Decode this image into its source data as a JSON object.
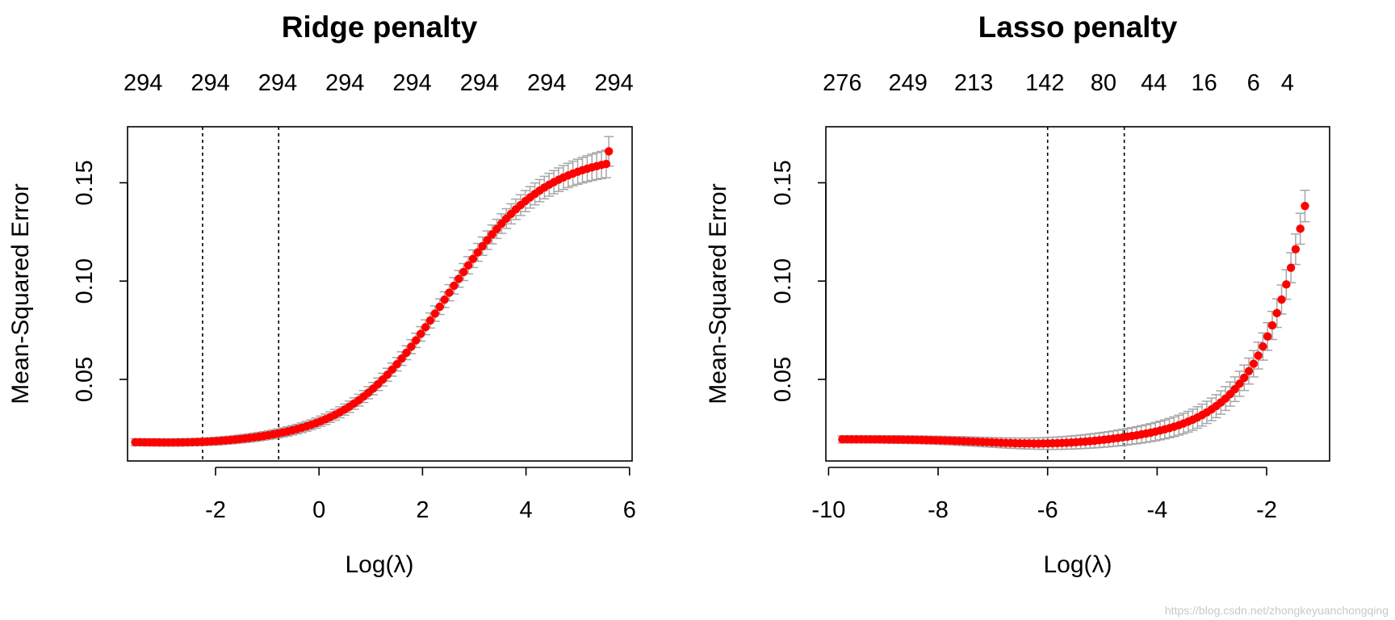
{
  "watermark": "https://blog.csdn.net/zhongkeyuanchongqing",
  "chart_data": [
    {
      "type": "scatter",
      "title": "Ridge penalty",
      "xlabel": "Log(λ)",
      "ylabel": "Mean-Squared Error",
      "xlim": [
        -3.7,
        6.05
      ],
      "ylim": [
        0.0085,
        0.1785
      ],
      "x_ticks": [
        -2,
        0,
        2,
        4,
        6
      ],
      "x_tick_labels": [
        "-2",
        "0",
        "2",
        "4",
        "6"
      ],
      "y_ticks": [
        0.05,
        0.1,
        0.15
      ],
      "y_tick_labels": [
        "0.05",
        "0.10",
        "0.15"
      ],
      "top_ticks": [
        -3.4,
        -2.1,
        -0.8,
        0.5,
        1.8,
        3.1,
        4.4,
        5.7
      ],
      "top_tick_labels": [
        "294",
        "294",
        "294",
        "294",
        "294",
        "294",
        "294",
        "294"
      ],
      "vlines": [
        -2.25,
        -0.78
      ],
      "curve": {
        "kind": "sigmoid",
        "x_start": -3.55,
        "x_end": 5.55,
        "n_points": 100,
        "lo": 0.018,
        "hi": 0.165,
        "mid": 2.45,
        "scale": 0.95,
        "min_dip": 0.0008,
        "min_at": -2.25,
        "se_lo": 0.0018,
        "se_hi": 0.007
      },
      "last_point": {
        "x": 5.6,
        "y": 0.166,
        "se": 0.0075
      }
    },
    {
      "type": "scatter",
      "title": "Lasso penalty",
      "xlabel": "Log(λ)",
      "ylabel": "Mean-Squared Error",
      "xlim": [
        -10.05,
        -0.85
      ],
      "ylim": [
        0.0085,
        0.1785
      ],
      "x_ticks": [
        -10,
        -8,
        -6,
        -4,
        -2
      ],
      "x_tick_labels": [
        "-10",
        "-8",
        "-6",
        "-4",
        "-2"
      ],
      "y_ticks": [
        0.05,
        0.1,
        0.15
      ],
      "y_tick_labels": [
        "0.05",
        "0.10",
        "0.15"
      ],
      "top_ticks": [
        -9.75,
        -8.55,
        -7.35,
        -6.05,
        -4.98,
        -4.06,
        -3.14,
        -2.24,
        -1.62
      ],
      "top_tick_labels": [
        "276",
        "249",
        "213",
        "142",
        "80",
        "44",
        "16",
        "6",
        "4"
      ],
      "vlines": [
        -6.0,
        -4.6
      ],
      "curve": {
        "kind": "exp",
        "x_start": -9.75,
        "x_end": -1.3,
        "n_points": 100,
        "base": 0.0195,
        "dip": 0.0025,
        "dip_at": -6.0,
        "dip_width": 1.6,
        "amp": 0.0014,
        "rate": 1.2,
        "ref": -5.0,
        "se_lo": 0.0018,
        "se_hi": 0.008
      }
    }
  ]
}
